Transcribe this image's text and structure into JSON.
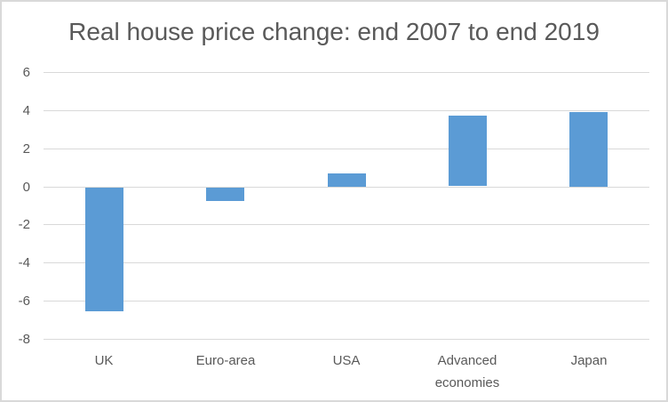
{
  "title": "Real house price change: end 2007 to end 2019",
  "colors": {
    "bar": "#5B9BD5",
    "gridline": "#D9D9D9",
    "text": "#595959",
    "frame_border": "#D9D9D9",
    "background": "#FFFFFF"
  },
  "chart_data": {
    "type": "bar",
    "title": "Real house price change: end 2007 to end 2019",
    "categories": [
      "UK",
      "Euro-area",
      "USA",
      "Advanced economies",
      "Japan"
    ],
    "values": [
      -6.5,
      -0.7,
      0.7,
      3.7,
      3.9
    ],
    "series": [
      {
        "name": "Real house price change",
        "values": [
          -6.5,
          -0.7,
          0.7,
          3.7,
          3.9
        ]
      }
    ],
    "xlabel": "",
    "ylabel": "",
    "ylim": [
      -8,
      6
    ],
    "yticks": [
      6,
      4,
      2,
      0,
      -2,
      -4,
      -6,
      -8
    ],
    "grid": true,
    "legend": false,
    "legend_position": "none",
    "bar_color": "#5B9BD5"
  }
}
